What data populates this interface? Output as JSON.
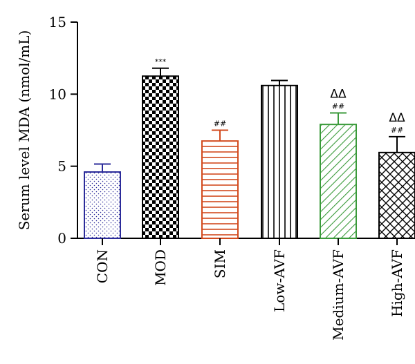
{
  "chart_data": {
    "type": "bar",
    "title": "",
    "xlabel": "",
    "ylabel": "Serum level MDA (nmol/mL)",
    "ylim": [
      0,
      15
    ],
    "yticks": [
      0,
      5,
      10,
      15
    ],
    "grid": false,
    "categories": [
      "CON",
      "MOD",
      "SIM",
      "Low-AVF",
      "Medium-AVF",
      "High-AVF"
    ],
    "values": [
      4.6,
      11.25,
      6.75,
      10.6,
      7.9,
      5.95
    ],
    "errors": [
      0.55,
      0.55,
      0.75,
      0.35,
      0.8,
      1.1
    ],
    "annotations": [
      {
        "category": "MOD",
        "lines": [
          "***"
        ]
      },
      {
        "category": "SIM",
        "lines": [
          "##"
        ]
      },
      {
        "category": "Medium-AVF",
        "lines": [
          "ΔΔ",
          "##"
        ]
      },
      {
        "category": "High-AVF",
        "lines": [
          "ΔΔ",
          "##"
        ]
      }
    ],
    "bar_styles": [
      {
        "pattern": "dots",
        "color": "#2b2b9a"
      },
      {
        "pattern": "checker",
        "color": "#000000"
      },
      {
        "pattern": "hlines",
        "color": "#d24a1e"
      },
      {
        "pattern": "vlines",
        "color": "#000000"
      },
      {
        "pattern": "diag",
        "color": "#3a9a3a"
      },
      {
        "pattern": "crosshatch",
        "color": "#000000"
      }
    ]
  }
}
